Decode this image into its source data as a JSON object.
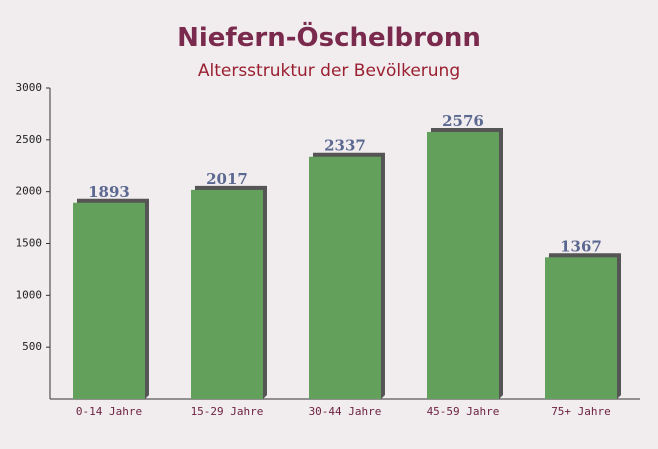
{
  "chart_data": {
    "type": "bar",
    "title": "Niefern-Öschelbronn",
    "subtitle": "Altersstruktur der Bevölkerung",
    "categories": [
      "0-14 Jahre",
      "15-29 Jahre",
      "30-44 Jahre",
      "45-59 Jahre",
      "75+ Jahre"
    ],
    "values": [
      1893,
      2017,
      2337,
      2576,
      1367
    ],
    "color": "#62a05c",
    "ylim": [
      0,
      3000
    ],
    "yticks": [
      500,
      1000,
      1500,
      2000,
      2500,
      3000
    ],
    "grid": false
  }
}
